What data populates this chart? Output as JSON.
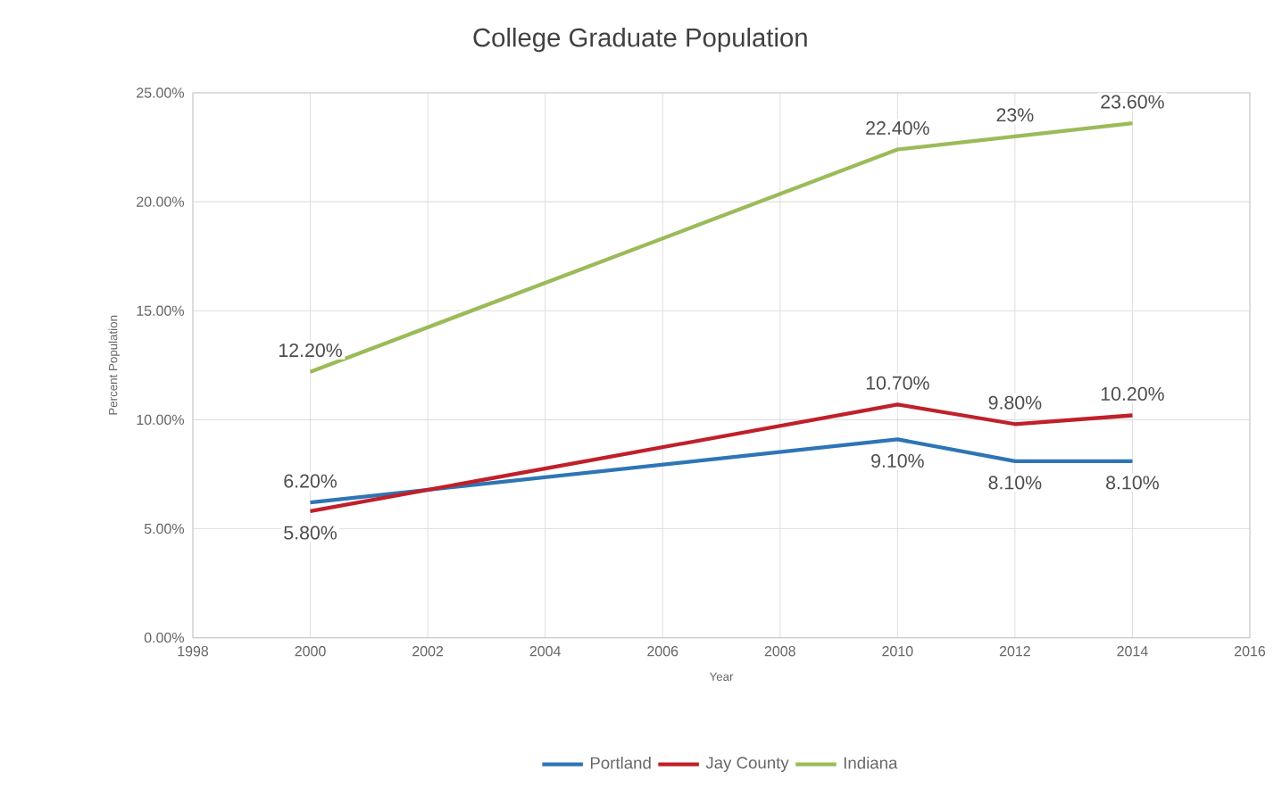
{
  "chart_data": {
    "type": "line",
    "title": "College Graduate Population",
    "xlabel": "Year",
    "ylabel": "Percent Population",
    "x": [
      2000,
      2010,
      2012,
      2014
    ],
    "series": [
      {
        "name": "Portland",
        "color": "#2e75b6",
        "values": [
          6.2,
          9.1,
          8.1,
          8.1
        ],
        "value_labels": [
          "6.20%",
          "9.10%",
          "8.10%",
          "8.10%"
        ]
      },
      {
        "name": "Jay County",
        "color": "#c0202a",
        "values": [
          5.8,
          10.7,
          9.8,
          10.2
        ],
        "value_labels": [
          "5.80%",
          "10.70%",
          "9.80%",
          "10.20%"
        ]
      },
      {
        "name": "Indiana",
        "color": "#9bbb59",
        "values": [
          12.2,
          22.4,
          23,
          23.6
        ],
        "value_labels": [
          "12.20%",
          "22.40%",
          "23%",
          "23.60%"
        ]
      }
    ],
    "xlim": [
      1998,
      2016
    ],
    "xticks": [
      1998,
      2000,
      2002,
      2004,
      2006,
      2008,
      2010,
      2012,
      2014,
      2016
    ],
    "ylim": [
      0,
      25
    ],
    "yticks": [
      {
        "value": 0,
        "label": "0.00%"
      },
      {
        "value": 5,
        "label": "5.00%"
      },
      {
        "value": 10,
        "label": "10.00%"
      },
      {
        "value": 15,
        "label": "15.00%"
      },
      {
        "value": 20,
        "label": "20.00%"
      },
      {
        "value": 25,
        "label": "25.00%"
      }
    ],
    "grid": true,
    "legend": "bottom",
    "marker": "none",
    "line_style": "solid"
  }
}
